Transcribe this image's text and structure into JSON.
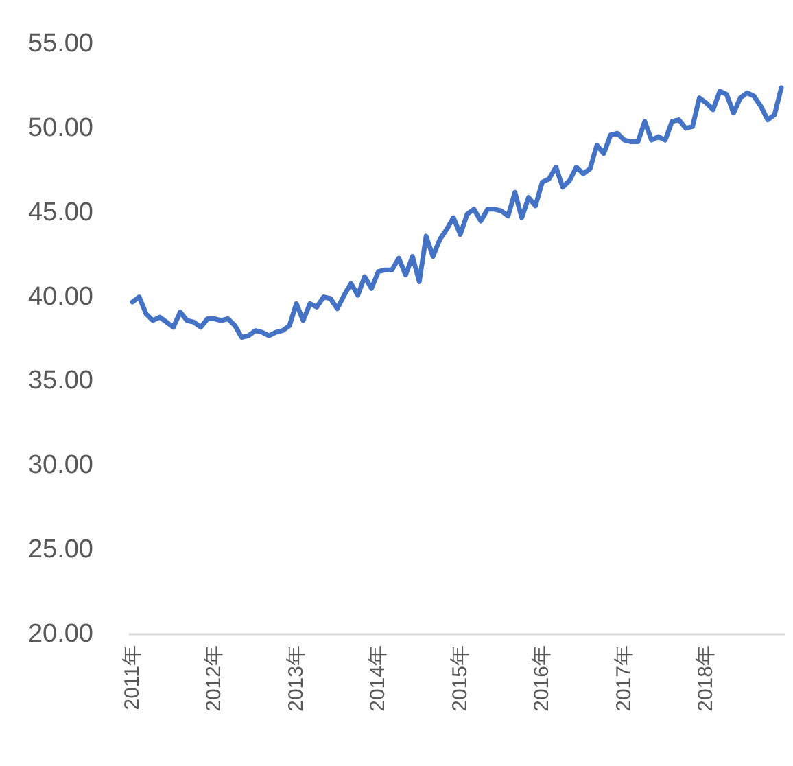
{
  "chart_data": {
    "type": "line",
    "categories": [
      "2011年",
      null,
      null,
      null,
      null,
      null,
      null,
      null,
      null,
      null,
      null,
      null,
      "2012年",
      null,
      null,
      null,
      null,
      null,
      null,
      null,
      null,
      null,
      null,
      null,
      "2013年",
      null,
      null,
      null,
      null,
      null,
      null,
      null,
      null,
      null,
      null,
      null,
      "2014年",
      null,
      null,
      null,
      null,
      null,
      null,
      null,
      null,
      null,
      null,
      null,
      "2015年",
      null,
      null,
      null,
      null,
      null,
      null,
      null,
      null,
      null,
      null,
      null,
      "2016年",
      null,
      null,
      null,
      null,
      null,
      null,
      null,
      null,
      null,
      null,
      null,
      "2017年",
      null,
      null,
      null,
      null,
      null,
      null,
      null,
      null,
      null,
      null,
      null,
      "2018年",
      null,
      null,
      null,
      null,
      null,
      null,
      null,
      null,
      null,
      null,
      null
    ],
    "series": [
      {
        "color": "#4472c4",
        "values": [
          39.7,
          40.0,
          39.0,
          38.6,
          38.8,
          38.5,
          38.2,
          39.1,
          38.6,
          38.5,
          38.2,
          38.7,
          38.7,
          38.6,
          38.7,
          38.3,
          37.6,
          37.7,
          38.0,
          37.9,
          37.7,
          37.9,
          38.0,
          38.3,
          39.6,
          38.6,
          39.6,
          39.4,
          40.0,
          39.9,
          39.3,
          40.1,
          40.8,
          40.1,
          41.2,
          40.5,
          41.5,
          41.6,
          41.6,
          42.3,
          41.3,
          42.4,
          40.9,
          43.6,
          42.4,
          43.4,
          44.0,
          44.7,
          43.7,
          44.9,
          45.2,
          44.5,
          45.2,
          45.2,
          45.1,
          44.8,
          46.2,
          44.7,
          45.9,
          45.4,
          46.8,
          47.0,
          47.7,
          46.5,
          46.9,
          47.7,
          47.3,
          47.6,
          49.0,
          48.5,
          49.6,
          49.7,
          49.3,
          49.2,
          49.2,
          50.4,
          49.3,
          49.5,
          49.3,
          50.4,
          50.5,
          50.0,
          50.1,
          51.8,
          51.5,
          51.1,
          52.2,
          52.0,
          50.9,
          51.8,
          52.1,
          51.9,
          51.3,
          50.5,
          50.8,
          52.4
        ]
      }
    ],
    "ylim": [
      20,
      55
    ],
    "yticks": [
      {
        "value": 20,
        "label": "20.00"
      },
      {
        "value": 25,
        "label": "25.00"
      },
      {
        "value": 30,
        "label": "30.00"
      },
      {
        "value": 35,
        "label": "35.00"
      },
      {
        "value": 40,
        "label": "40.00"
      },
      {
        "value": 45,
        "label": "45.00"
      },
      {
        "value": 50,
        "label": "50.00"
      },
      {
        "value": 55,
        "label": "55.00"
      }
    ]
  }
}
